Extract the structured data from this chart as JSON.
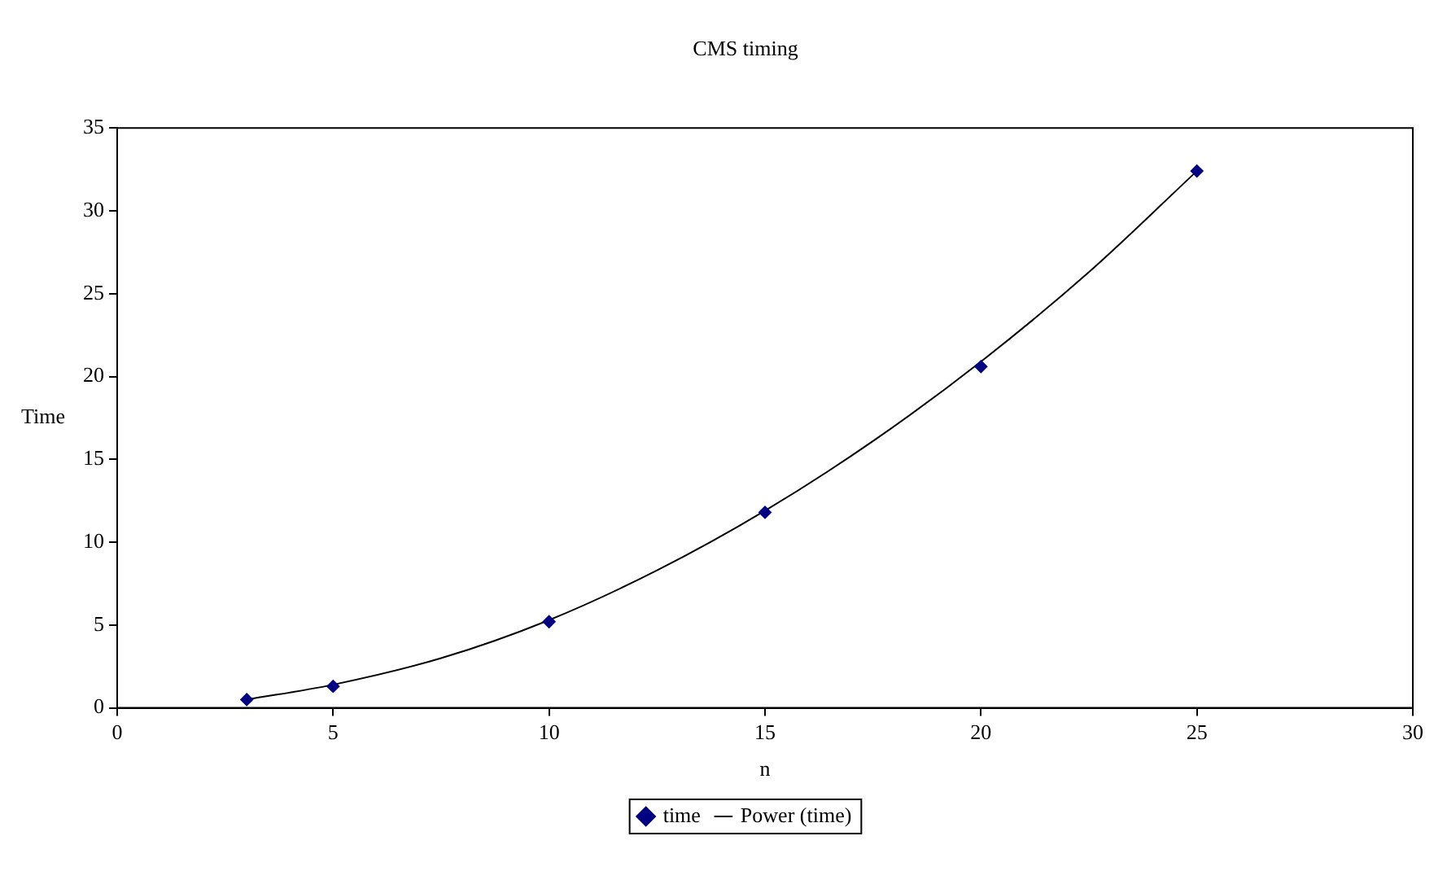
{
  "chart_data": {
    "type": "scatter",
    "title": "CMS timing",
    "xlabel": "n",
    "ylabel": "Time",
    "xlim": [
      0,
      30
    ],
    "xticks": [
      0,
      5,
      10,
      15,
      20,
      25,
      30
    ],
    "ylim": [
      0,
      35
    ],
    "yticks": [
      0,
      5,
      10,
      15,
      20,
      25,
      30,
      35
    ],
    "grid": false,
    "legend": "bottom",
    "series": [
      {
        "name": "time",
        "type": "scatter",
        "color": "#000080",
        "marker": "diamond",
        "x": [
          3,
          5,
          10,
          15,
          20,
          25
        ],
        "values": [
          0.5,
          1.3,
          5.2,
          11.8,
          20.6,
          32.4
        ]
      },
      {
        "name": "Power (time)",
        "type": "line",
        "color": "#000000",
        "marker": "none",
        "x": [
          3,
          5,
          7.5,
          10,
          12.5,
          15,
          17.5,
          20,
          22.5,
          25
        ],
        "values": [
          0.5,
          1.4,
          3.0,
          5.3,
          8.3,
          11.9,
          16.1,
          20.9,
          26.3,
          32.4
        ]
      }
    ]
  }
}
